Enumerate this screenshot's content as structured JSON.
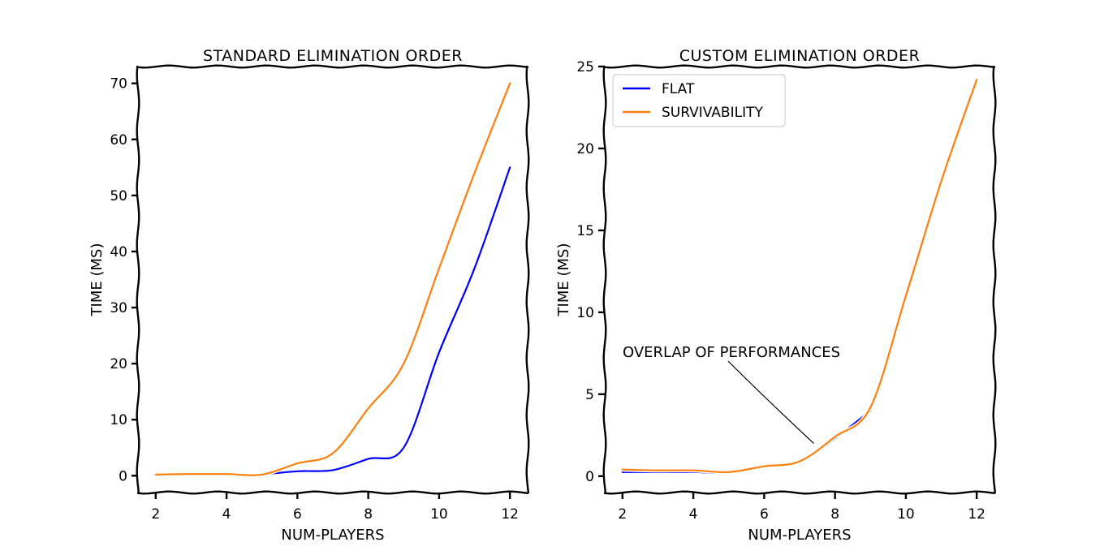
{
  "chart_data": [
    {
      "type": "line",
      "title": "Standard Elimination Order",
      "xlabel": "num-players",
      "ylabel": "time (ms)",
      "xlim": [
        1.5,
        12.5
      ],
      "ylim": [
        -3,
        73
      ],
      "x_ticks": [
        2,
        4,
        6,
        8,
        10,
        12
      ],
      "y_ticks": [
        0,
        10,
        20,
        30,
        40,
        50,
        60,
        70
      ],
      "grid": false,
      "legend": null,
      "series": [
        {
          "key": "flat",
          "color": "#0000ff",
          "x": [
            5,
            6,
            7,
            8,
            9,
            10,
            11,
            12
          ],
          "y": [
            0.2,
            0.8,
            1.0,
            3.0,
            5.0,
            22.0,
            37.0,
            55.0
          ]
        },
        {
          "key": "survivability",
          "color": "#ff7f0e",
          "x": [
            2,
            3,
            4,
            5,
            6,
            7,
            8,
            9,
            10,
            11,
            12
          ],
          "y": [
            0.2,
            0.3,
            0.3,
            0.2,
            2.2,
            4.0,
            12.0,
            20.0,
            37.0,
            54.0,
            70.0
          ]
        }
      ]
    },
    {
      "type": "line",
      "title": "Custom Elimination Order",
      "xlabel": "num-players",
      "ylabel": "time (ms)",
      "xlim": [
        1.5,
        12.5
      ],
      "ylim": [
        -1,
        25
      ],
      "x_ticks": [
        2,
        4,
        6,
        8,
        10,
        12
      ],
      "y_ticks": [
        0,
        5,
        10,
        15,
        20,
        25
      ],
      "grid": false,
      "legend": {
        "placement": "upper-left",
        "entries": [
          {
            "label": "Flat",
            "color": "#0000ff"
          },
          {
            "label": "Survivability",
            "color": "#ff7f0e"
          }
        ]
      },
      "annotation": {
        "text": "overlap of performances",
        "arrow_to": [
          7.4,
          2.0
        ]
      },
      "series": [
        {
          "key": "flat",
          "color": "#0000ff",
          "x": [
            2,
            3,
            4,
            5,
            6,
            7,
            8,
            9
          ],
          "y": [
            0.25,
            0.25,
            0.25,
            0.2,
            0.55,
            0.85,
            2.3,
            4.0
          ]
        },
        {
          "key": "survivability",
          "color": "#ff7f0e",
          "x": [
            2,
            3,
            4,
            5,
            6,
            7,
            8,
            9,
            10,
            11,
            12
          ],
          "y": [
            0.4,
            0.35,
            0.35,
            0.25,
            0.6,
            0.9,
            2.4,
            4.2,
            11.0,
            18.0,
            24.2
          ]
        }
      ]
    }
  ]
}
